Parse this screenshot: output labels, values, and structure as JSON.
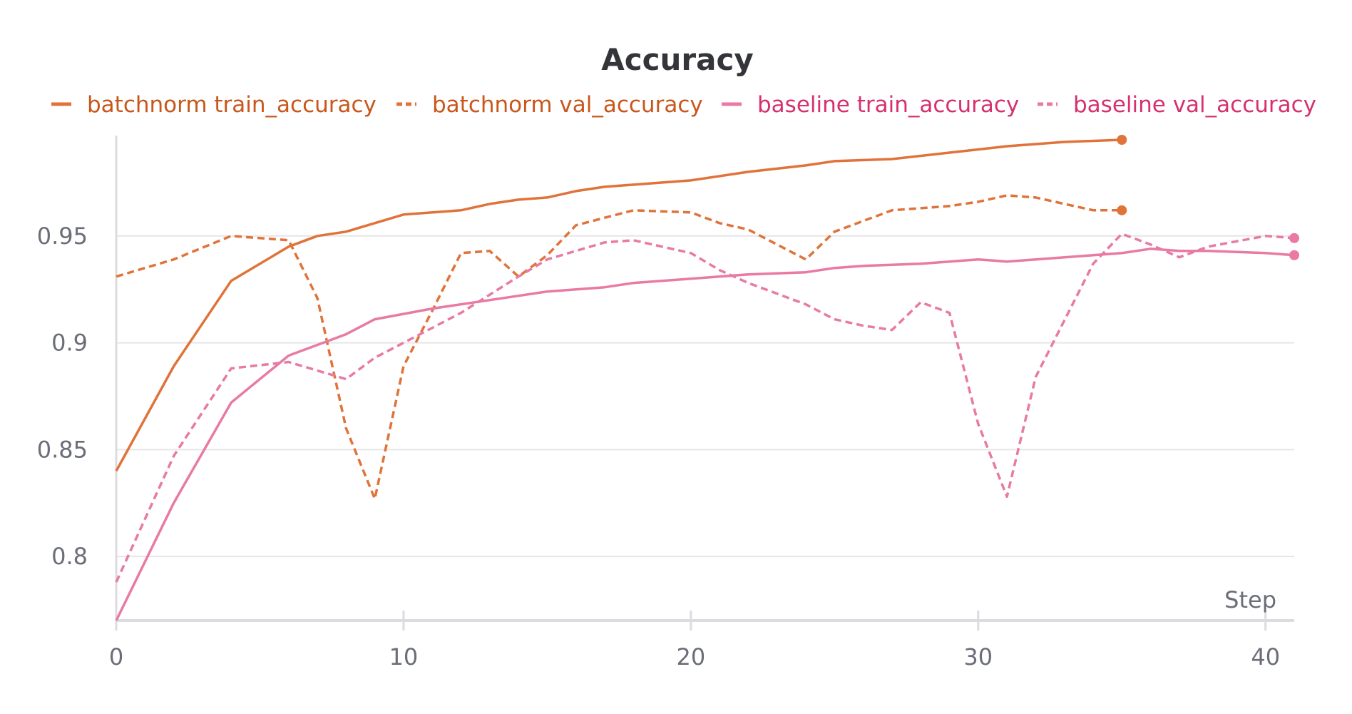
{
  "chart_data": {
    "type": "line",
    "title": "Accuracy",
    "xlabel": "Step",
    "ylabel": "",
    "xlim": [
      0,
      41
    ],
    "ylim": [
      0.77,
      0.997
    ],
    "x_ticks": [
      0,
      10,
      20,
      30,
      40
    ],
    "x_tick_labels": [
      "0",
      "10",
      "20",
      "30",
      "40"
    ],
    "y_ticks": [
      0.8,
      0.85,
      0.9,
      0.95
    ],
    "y_tick_labels": [
      "0.8",
      "0.85",
      "0.9",
      "0.95"
    ],
    "grid": "horizontal",
    "legend_position": "top",
    "series": [
      {
        "name": "batchnorm train_accuracy",
        "color": "#e0733a",
        "label_color": "#c9561a",
        "dash": "solid",
        "end_marker": true,
        "x": [
          0,
          2,
          4,
          6,
          7,
          8,
          9,
          10,
          12,
          13,
          14,
          15,
          16,
          17,
          18,
          20,
          22,
          24,
          25,
          27,
          29,
          31,
          32,
          33,
          35
        ],
        "y": [
          0.84,
          0.889,
          0.929,
          0.945,
          0.95,
          0.952,
          0.956,
          0.96,
          0.962,
          0.965,
          0.967,
          0.968,
          0.971,
          0.973,
          0.974,
          0.976,
          0.98,
          0.983,
          0.985,
          0.986,
          0.989,
          0.992,
          0.993,
          0.994,
          0.995
        ]
      },
      {
        "name": "batchnorm val_accuracy",
        "color": "#e0733a",
        "label_color": "#c9561a",
        "dash": "dashed",
        "end_marker": true,
        "x": [
          0,
          2,
          4,
          6,
          7,
          8,
          9,
          10,
          11,
          12,
          13,
          14,
          15,
          16,
          18,
          20,
          21,
          22,
          24,
          25,
          27,
          29,
          30,
          31,
          32,
          34,
          35
        ],
        "y": [
          0.931,
          0.939,
          0.95,
          0.948,
          0.921,
          0.86,
          0.827,
          0.889,
          0.915,
          0.942,
          0.943,
          0.931,
          0.941,
          0.955,
          0.962,
          0.961,
          0.956,
          0.953,
          0.939,
          0.952,
          0.962,
          0.964,
          0.966,
          0.969,
          0.968,
          0.962,
          0.962
        ]
      },
      {
        "name": "baseline train_accuracy",
        "color": "#e87aa4",
        "label_color": "#d6306e",
        "dash": "solid",
        "end_marker": true,
        "x": [
          0,
          2,
          4,
          6,
          8,
          9,
          11,
          13,
          15,
          17,
          18,
          20,
          22,
          24,
          25,
          26,
          28,
          29,
          30,
          31,
          32,
          34,
          35,
          36,
          37,
          38,
          40,
          41
        ],
        "y": [
          0.77,
          0.825,
          0.872,
          0.894,
          0.904,
          0.911,
          0.916,
          0.92,
          0.924,
          0.926,
          0.928,
          0.93,
          0.932,
          0.933,
          0.935,
          0.936,
          0.937,
          0.938,
          0.939,
          0.938,
          0.939,
          0.941,
          0.942,
          0.944,
          0.943,
          0.943,
          0.942,
          0.941
        ]
      },
      {
        "name": "baseline val_accuracy",
        "color": "#e87aa4",
        "label_color": "#d6306e",
        "dash": "dashed",
        "end_marker": true,
        "x": [
          0,
          2,
          4,
          6,
          8,
          9,
          10,
          12,
          14,
          15,
          17,
          18,
          20,
          21,
          22,
          24,
          25,
          26,
          27,
          28,
          29,
          30,
          31,
          32,
          34,
          35,
          36,
          37,
          38,
          40,
          41
        ],
        "y": [
          0.788,
          0.847,
          0.888,
          0.891,
          0.883,
          0.893,
          0.9,
          0.914,
          0.931,
          0.939,
          0.947,
          0.948,
          0.942,
          0.934,
          0.928,
          0.918,
          0.911,
          0.908,
          0.906,
          0.919,
          0.914,
          0.862,
          0.828,
          0.884,
          0.937,
          0.951,
          0.946,
          0.94,
          0.945,
          0.95,
          0.949
        ]
      }
    ]
  }
}
